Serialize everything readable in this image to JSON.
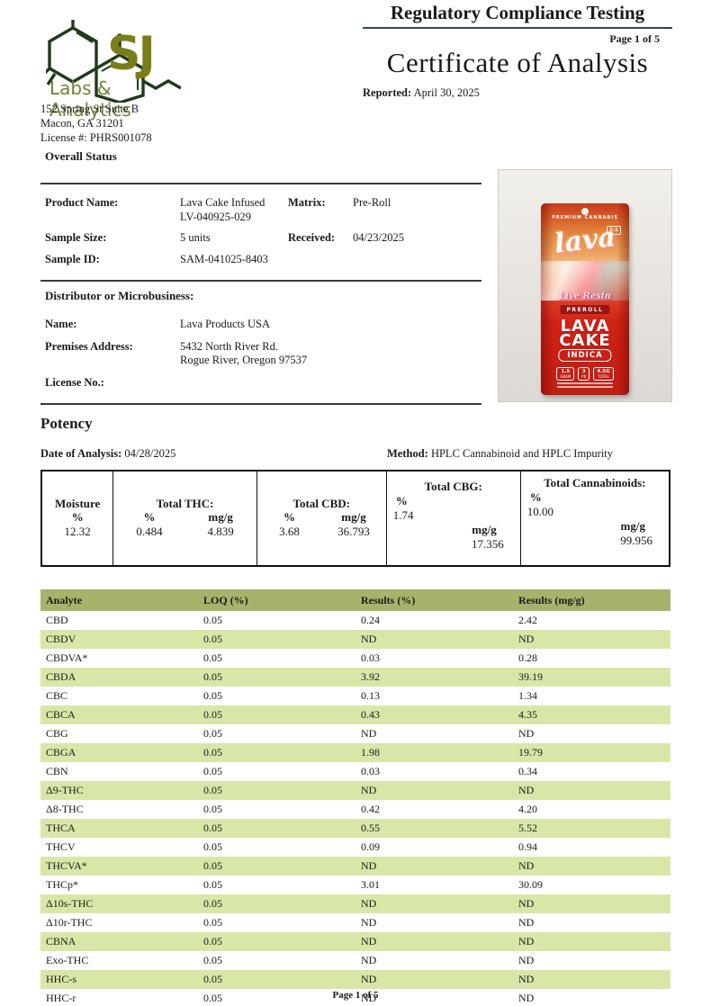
{
  "lab": {
    "logo_sj": "SJ",
    "logo_sub": "Labs & Analytics",
    "address_line1": "152 Spring St Suite B",
    "address_line2": "Macon, GA 31201",
    "address_line3": "License #: PHRS001078"
  },
  "header": {
    "doc_type": "Regulatory Compliance Testing",
    "page_indicator": "Page 1 of 5",
    "title": "Certificate of Analysis",
    "reported_label": "Reported:",
    "reported_value": "April 30, 2025"
  },
  "overall_status_label": "Overall Status",
  "sample_info": {
    "product_name_label": "Product Name:",
    "product_name_line1": "Lava Cake Infused",
    "product_name_line2": "LV-040925-029",
    "matrix_label": "Matrix:",
    "matrix_value": "Pre-Roll",
    "sample_size_label": "Sample Size:",
    "sample_size_value": "5 units",
    "received_label": "Received:",
    "received_value": "04/23/2025",
    "sample_id_label": "Sample ID:",
    "sample_id_value": "SAM-041025-8403"
  },
  "distributor": {
    "heading": "Distributor or Microbusiness:",
    "name_label": "Name:",
    "name_value": "Lava Products USA",
    "premises_label": "Premises Address:",
    "premises_line1": "5432 North River Rd.",
    "premises_line2": "Rogue River, Oregon 97537",
    "license_label": "License No.:"
  },
  "product_photo": {
    "premium_text": "PREMIUM CANNABIS",
    "ratio_badge": "2:1",
    "brand_script": "lava",
    "line_text": "Live Resin",
    "preroll_text": "PREROLL",
    "product_line1": "LAVA",
    "product_line2": "CAKE",
    "strain_type": "INDICA",
    "badge1_line1": "1.5",
    "badge1_line2": "GRAM",
    "badge2_line1": "3",
    "badge2_line2": "PK",
    "badge3_line1": "4.5G",
    "badge3_line2": "TOTAL"
  },
  "potency": {
    "heading": "Potency",
    "date_label": "Date of Analysis:",
    "date_value": "04/28/2025",
    "method_label": "Method:",
    "method_value": "HPLC Cannabinoid and HPLC Impurity",
    "summary": {
      "moisture_title": "Moisture",
      "pct_label": "%",
      "mgg_label": "mg/g",
      "moisture_pct": "12.32",
      "thc_title": "Total THC:",
      "thc_pct": "0.484",
      "thc_mgg": "4.839",
      "cbd_title": "Total CBD:",
      "cbd_pct": "3.68",
      "cbd_mgg": "36.793",
      "cbg_title": "Total CBG:",
      "cbg_pct": "1.74",
      "cbg_mgg": "17.356",
      "cannabinoids_title": "Total Cannabinoids:",
      "cannabinoids_pct": "10.00",
      "cannabinoids_mgg": "99.956"
    }
  },
  "analyte_table": {
    "columns": [
      "Analyte",
      "LOQ (%)",
      "Results (%)",
      "Results (mg/g)"
    ],
    "rows": [
      [
        "CBD",
        "0.05",
        "0.24",
        "2.42"
      ],
      [
        "CBDV",
        "0.05",
        "ND",
        "ND"
      ],
      [
        "CBDVA*",
        "0.05",
        "0.03",
        "0.28"
      ],
      [
        "CBDA",
        "0.05",
        "3.92",
        "39.19"
      ],
      [
        "CBC",
        "0.05",
        "0.13",
        "1.34"
      ],
      [
        "CBCA",
        "0.05",
        "0.43",
        "4.35"
      ],
      [
        "CBG",
        "0.05",
        "ND",
        "ND"
      ],
      [
        "CBGA",
        "0.05",
        "1.98",
        "19.79"
      ],
      [
        "CBN",
        "0.05",
        "0.03",
        "0.34"
      ],
      [
        "Δ9-THC",
        "0.05",
        "ND",
        "ND"
      ],
      [
        "Δ8-THC",
        "0.05",
        "0.42",
        "4.20"
      ],
      [
        "THCA",
        "0.05",
        "0.55",
        "5.52"
      ],
      [
        "THCV",
        "0.05",
        "0.09",
        "0.94"
      ],
      [
        "THCVA*",
        "0.05",
        "ND",
        "ND"
      ],
      [
        "THCp*",
        "0.05",
        "3.01",
        "30.09"
      ],
      [
        "Δ10s-THC",
        "0.05",
        "ND",
        "ND"
      ],
      [
        "Δ10r-THC",
        "0.05",
        "ND",
        "ND"
      ],
      [
        "CBNA",
        "0.05",
        "ND",
        "ND"
      ],
      [
        "Exo-THC",
        "0.05",
        "ND",
        "ND"
      ],
      [
        "HHC-s",
        "0.05",
        "ND",
        "ND"
      ],
      [
        "HHC-r",
        "0.05",
        "ND",
        "ND"
      ]
    ]
  },
  "footer": {
    "page": "Page 1 of 5"
  },
  "colors": {
    "logo_molecule": "#203a1c",
    "logo_sj": "#7a7e1a",
    "logo_labs": "#6e8434",
    "header_rule": "#2c4a52",
    "table_header_green": "#a6b46b",
    "table_row_green": "#d8e7a8",
    "pouch_red": "#cc2418"
  }
}
